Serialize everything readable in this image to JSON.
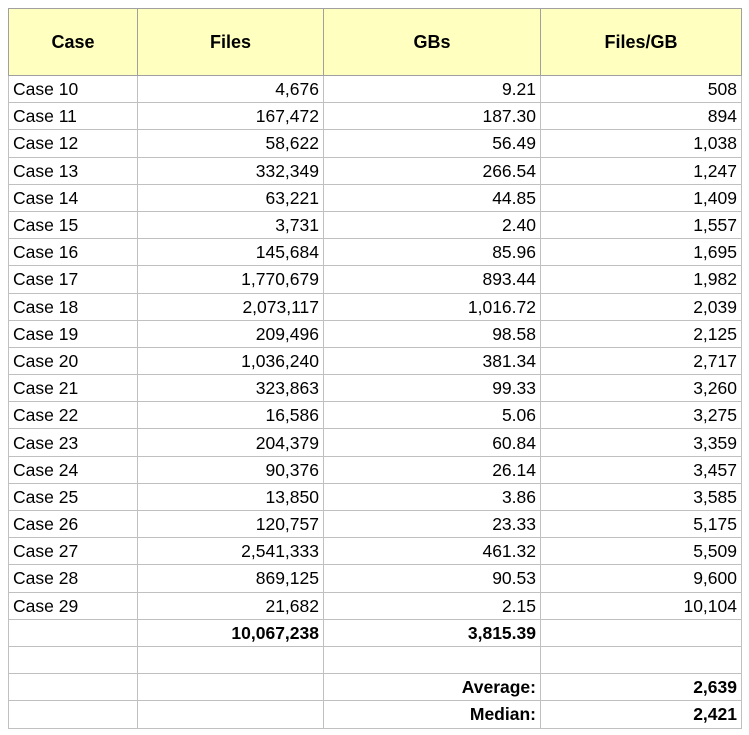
{
  "headers": {
    "case": "Case",
    "files": "Files",
    "gbs": "GBs",
    "files_per_gb": "Files/GB"
  },
  "rows": [
    {
      "case": "Case 10",
      "files": "4,676",
      "gbs": "9.21",
      "files_per_gb": "508"
    },
    {
      "case": "Case 11",
      "files": "167,472",
      "gbs": "187.30",
      "files_per_gb": "894"
    },
    {
      "case": "Case 12",
      "files": "58,622",
      "gbs": "56.49",
      "files_per_gb": "1,038"
    },
    {
      "case": "Case 13",
      "files": "332,349",
      "gbs": "266.54",
      "files_per_gb": "1,247"
    },
    {
      "case": "Case 14",
      "files": "63,221",
      "gbs": "44.85",
      "files_per_gb": "1,409"
    },
    {
      "case": "Case 15",
      "files": "3,731",
      "gbs": "2.40",
      "files_per_gb": "1,557"
    },
    {
      "case": "Case 16",
      "files": "145,684",
      "gbs": "85.96",
      "files_per_gb": "1,695"
    },
    {
      "case": "Case 17",
      "files": "1,770,679",
      "gbs": "893.44",
      "files_per_gb": "1,982"
    },
    {
      "case": "Case 18",
      "files": "2,073,117",
      "gbs": "1,016.72",
      "files_per_gb": "2,039"
    },
    {
      "case": "Case 19",
      "files": "209,496",
      "gbs": "98.58",
      "files_per_gb": "2,125"
    },
    {
      "case": "Case 20",
      "files": "1,036,240",
      "gbs": "381.34",
      "files_per_gb": "2,717"
    },
    {
      "case": "Case 21",
      "files": "323,863",
      "gbs": "99.33",
      "files_per_gb": "3,260"
    },
    {
      "case": "Case 22",
      "files": "16,586",
      "gbs": "5.06",
      "files_per_gb": "3,275"
    },
    {
      "case": "Case 23",
      "files": "204,379",
      "gbs": "60.84",
      "files_per_gb": "3,359"
    },
    {
      "case": "Case 24",
      "files": "90,376",
      "gbs": "26.14",
      "files_per_gb": "3,457"
    },
    {
      "case": "Case 25",
      "files": "13,850",
      "gbs": "3.86",
      "files_per_gb": "3,585"
    },
    {
      "case": "Case 26",
      "files": "120,757",
      "gbs": "23.33",
      "files_per_gb": "5,175"
    },
    {
      "case": "Case 27",
      "files": "2,541,333",
      "gbs": "461.32",
      "files_per_gb": "5,509"
    },
    {
      "case": "Case 28",
      "files": "869,125",
      "gbs": "90.53",
      "files_per_gb": "9,600"
    },
    {
      "case": "Case 29",
      "files": "21,682",
      "gbs": "2.15",
      "files_per_gb": "10,104"
    }
  ],
  "totals": {
    "files": "10,067,238",
    "gbs": "3,815.39"
  },
  "stats": {
    "average_label": "Average:",
    "average_value": "2,639",
    "median_label": "Median:",
    "median_value": "2,421"
  }
}
